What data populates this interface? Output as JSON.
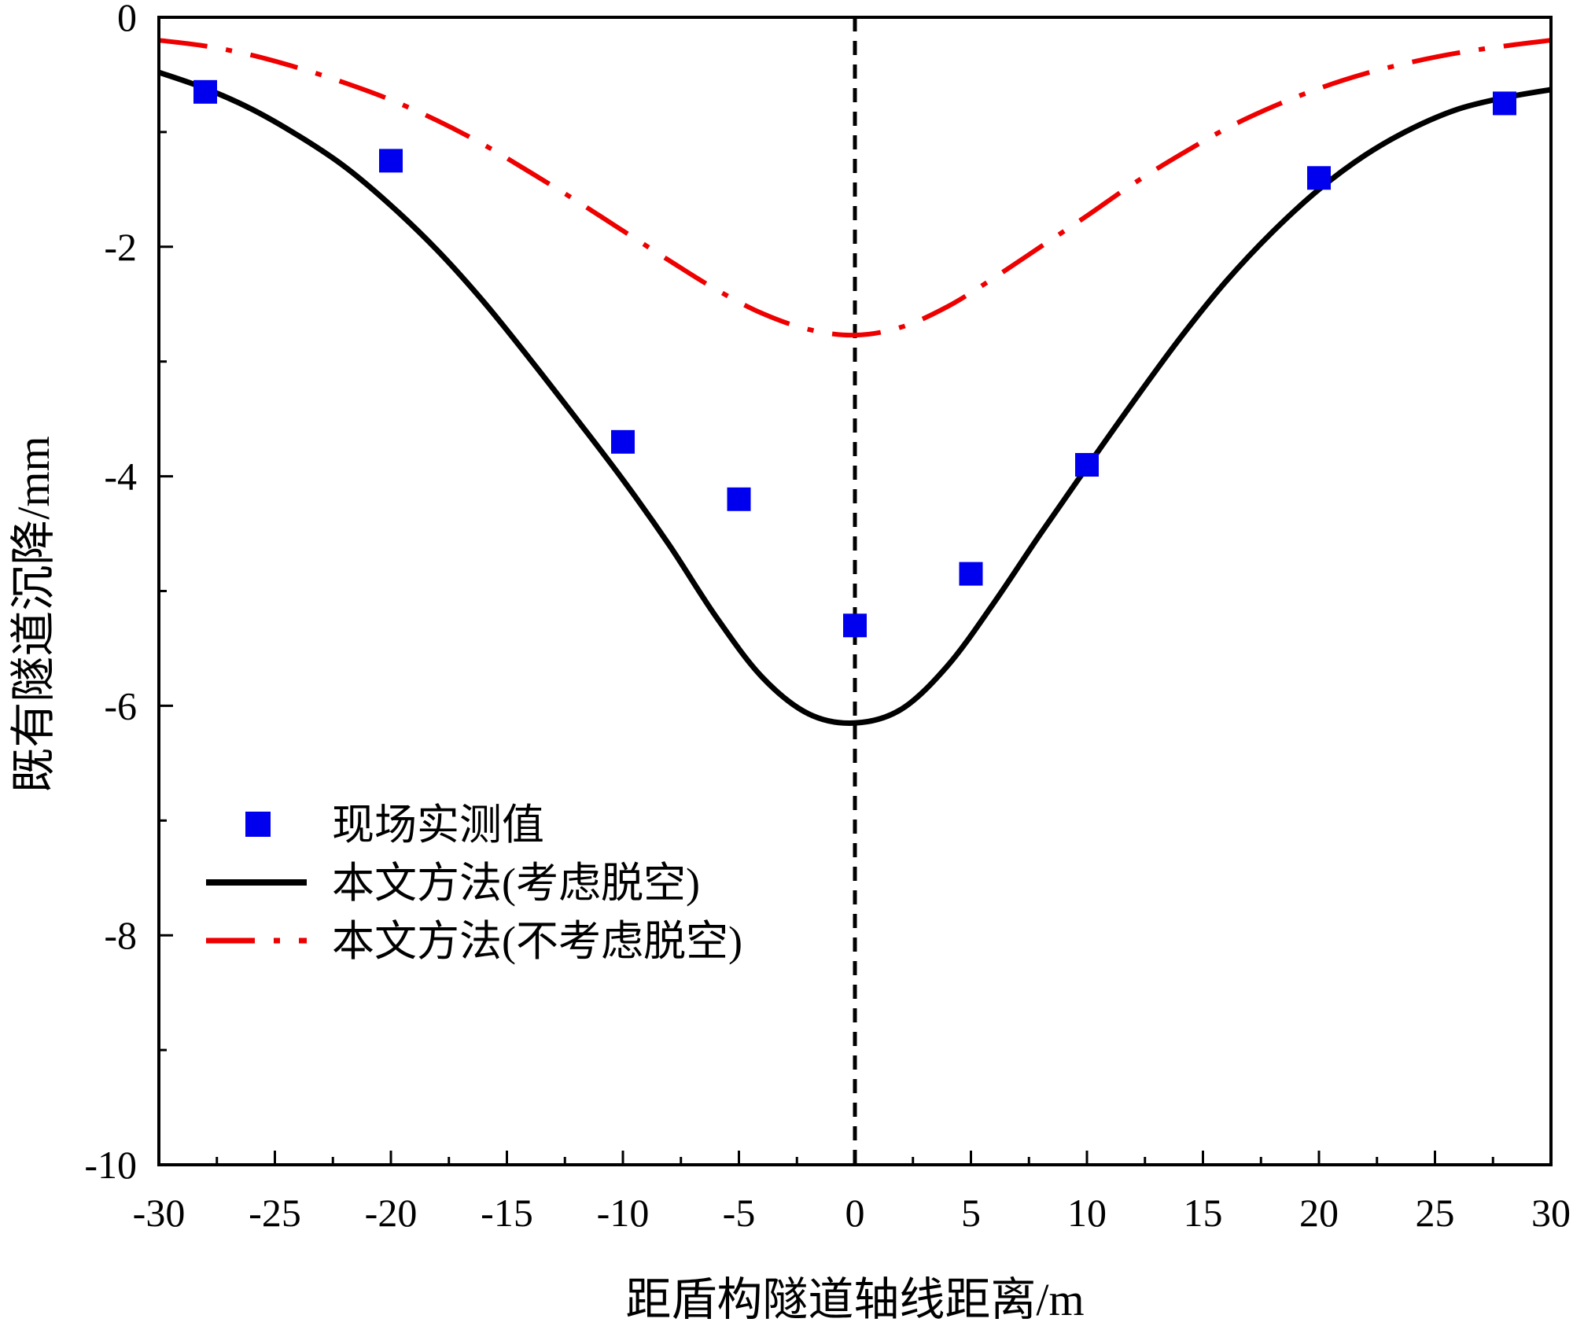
{
  "chart_data": {
    "type": "line",
    "title": "",
    "xlabel": "距盾构隧道轴线距离/m",
    "ylabel": "既有隧道沉降/mm",
    "xlim": [
      -30,
      30
    ],
    "ylim": [
      -10,
      0
    ],
    "xticks": [
      -30,
      -25,
      -20,
      -15,
      -10,
      -5,
      0,
      5,
      10,
      15,
      20,
      25,
      30
    ],
    "xtick_labels": [
      "-30",
      "-25",
      "-20",
      "-15",
      "-10",
      "-5",
      "0",
      "5",
      "10",
      "15",
      "20",
      "25",
      "30"
    ],
    "yticks": [
      0,
      -2,
      -4,
      -6,
      -8,
      -10
    ],
    "ytick_labels": [
      "0",
      "-2",
      "-4",
      "-6",
      "-8",
      "-10"
    ],
    "grid": false,
    "legend_position": "bottom-left",
    "reference_line_x": 0,
    "series": [
      {
        "name": "现场实测值",
        "kind": "scatter",
        "color": "#0000ee",
        "x": [
          -28,
          -20,
          -10,
          -5,
          0,
          5,
          10,
          20,
          28
        ],
        "y": [
          -0.65,
          -1.25,
          -3.7,
          -4.2,
          -5.3,
          -4.85,
          -3.9,
          -1.4,
          -0.75
        ]
      },
      {
        "name": "本文方法(考虑脱空)",
        "kind": "line",
        "style": "solid",
        "color": "#000000",
        "x": [
          -30,
          -28,
          -26,
          -24,
          -22,
          -20,
          -18,
          -16,
          -14,
          -12,
          -10,
          -8,
          -6,
          -4,
          -2,
          0,
          2,
          4,
          6,
          8,
          10,
          12,
          14,
          16,
          18,
          20,
          22,
          24,
          26,
          28,
          30
        ],
        "y": [
          -0.48,
          -0.62,
          -0.8,
          -1.03,
          -1.3,
          -1.64,
          -2.03,
          -2.48,
          -2.98,
          -3.5,
          -4.03,
          -4.6,
          -5.22,
          -5.75,
          -6.07,
          -6.15,
          -6.03,
          -5.65,
          -5.1,
          -4.5,
          -3.92,
          -3.35,
          -2.8,
          -2.3,
          -1.87,
          -1.5,
          -1.2,
          -0.97,
          -0.8,
          -0.7,
          -0.63
        ]
      },
      {
        "name": "本文方法(不考虑脱空)",
        "kind": "line",
        "style": "dashdot",
        "color": "#ee0000",
        "x": [
          -30,
          -28,
          -26,
          -24,
          -22,
          -20,
          -18,
          -16,
          -14,
          -12,
          -10,
          -8,
          -6,
          -4,
          -2,
          0,
          2,
          4,
          6,
          8,
          10,
          12,
          14,
          16,
          18,
          20,
          22,
          24,
          26,
          28,
          30
        ],
        "y": [
          -0.2,
          -0.25,
          -0.33,
          -0.44,
          -0.57,
          -0.72,
          -0.9,
          -1.11,
          -1.35,
          -1.6,
          -1.86,
          -2.12,
          -2.37,
          -2.58,
          -2.72,
          -2.77,
          -2.7,
          -2.52,
          -2.27,
          -2.0,
          -1.73,
          -1.45,
          -1.2,
          -0.97,
          -0.78,
          -0.62,
          -0.49,
          -0.39,
          -0.31,
          -0.25,
          -0.2
        ]
      }
    ]
  }
}
